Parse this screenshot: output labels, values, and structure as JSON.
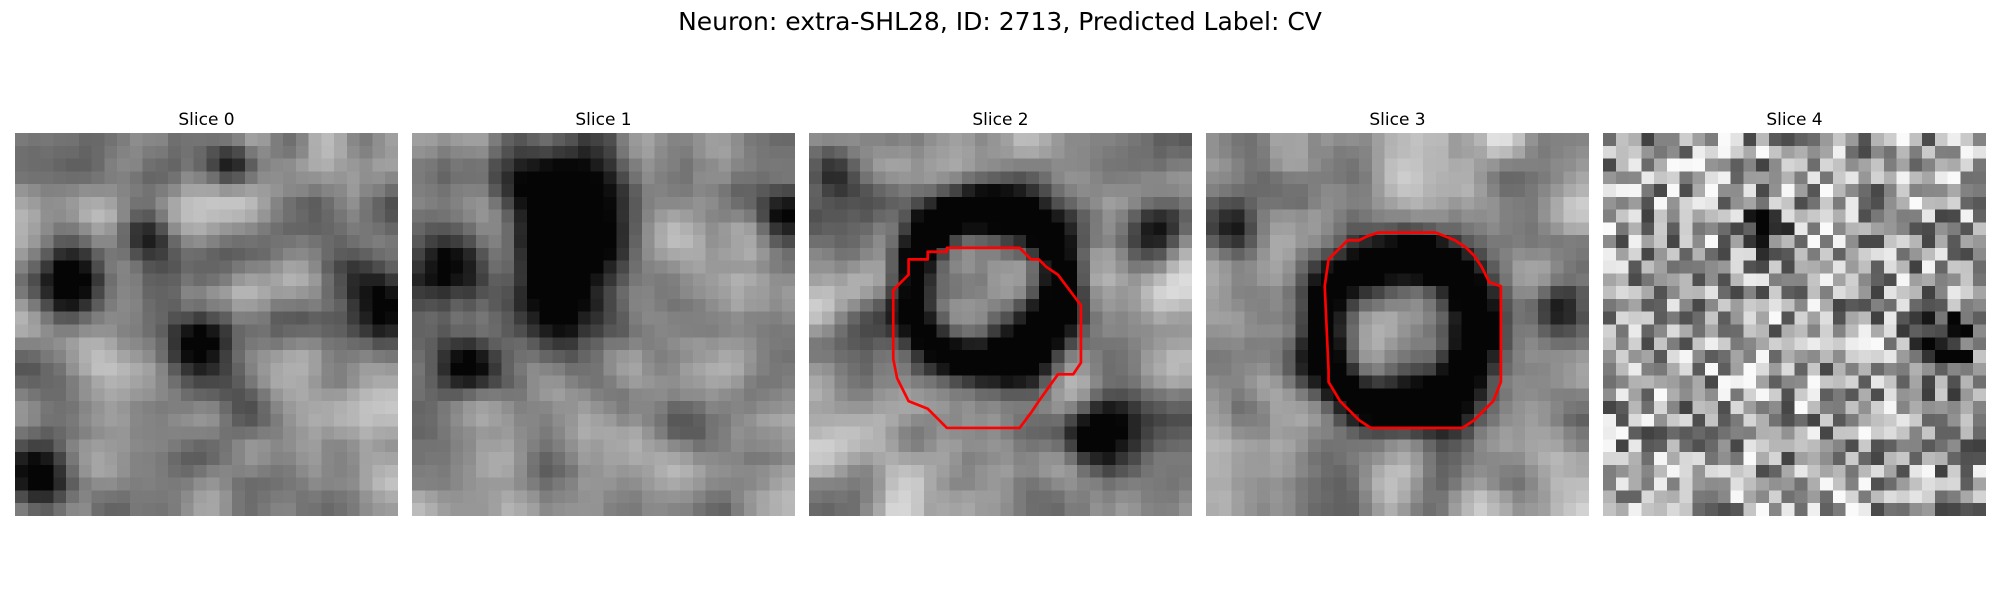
{
  "title": "Neuron: extra-SHL28, ID: 2713, Predicted Label: CV",
  "overlay_color": "#ff0000",
  "slices": [
    {
      "label": "Slice 0",
      "texture": "smooth",
      "dark_spots": [
        [
          0.47,
          0.55,
          0.07
        ],
        [
          0.93,
          0.45,
          0.08
        ],
        [
          0.15,
          0.38,
          0.06
        ],
        [
          0.57,
          0.08,
          0.05
        ],
        [
          0.05,
          0.9,
          0.06
        ],
        [
          0.35,
          0.28,
          0.05
        ]
      ],
      "ring": null,
      "contour": null
    },
    {
      "label": "Slice 1",
      "texture": "smooth",
      "dark_spots": [
        [
          0.4,
          0.15,
          0.12
        ],
        [
          0.4,
          0.3,
          0.09
        ],
        [
          0.38,
          0.47,
          0.1
        ],
        [
          0.08,
          0.35,
          0.07
        ],
        [
          0.97,
          0.2,
          0.06
        ],
        [
          0.15,
          0.6,
          0.06
        ]
      ],
      "ring": null,
      "contour": null
    },
    {
      "label": "Slice 2",
      "texture": "smooth",
      "dark_spots": [
        [
          0.92,
          0.25,
          0.06
        ],
        [
          0.75,
          0.78,
          0.07
        ],
        [
          0.05,
          0.1,
          0.05
        ]
      ],
      "ring": [
        0.46,
        0.4,
        0.2,
        0.05
      ],
      "contour": [
        [
          0.23,
          0.4
        ],
        [
          0.26,
          0.37
        ],
        [
          0.26,
          0.33
        ],
        [
          0.31,
          0.33
        ],
        [
          0.31,
          0.31
        ],
        [
          0.36,
          0.31
        ],
        [
          0.36,
          0.3
        ],
        [
          0.55,
          0.3
        ],
        [
          0.58,
          0.33
        ],
        [
          0.6,
          0.33
        ],
        [
          0.62,
          0.35
        ],
        [
          0.65,
          0.37
        ],
        [
          0.71,
          0.45
        ],
        [
          0.71,
          0.6
        ],
        [
          0.69,
          0.63
        ],
        [
          0.65,
          0.63
        ],
        [
          0.6,
          0.7
        ],
        [
          0.58,
          0.73
        ],
        [
          0.55,
          0.77
        ],
        [
          0.36,
          0.77
        ],
        [
          0.31,
          0.72
        ],
        [
          0.26,
          0.7
        ],
        [
          0.23,
          0.64
        ],
        [
          0.22,
          0.59
        ],
        [
          0.22,
          0.41
        ]
      ]
    },
    {
      "label": "Slice 3",
      "texture": "smooth",
      "dark_spots": [
        [
          0.05,
          0.25,
          0.06
        ],
        [
          0.92,
          0.45,
          0.05
        ]
      ],
      "ring": [
        0.5,
        0.52,
        0.2,
        0.05
      ],
      "contour": [
        [
          0.32,
          0.33
        ],
        [
          0.35,
          0.3
        ],
        [
          0.37,
          0.28
        ],
        [
          0.4,
          0.28
        ],
        [
          0.42,
          0.27
        ],
        [
          0.45,
          0.26
        ],
        [
          0.6,
          0.26
        ],
        [
          0.65,
          0.28
        ],
        [
          0.68,
          0.3
        ],
        [
          0.7,
          0.32
        ],
        [
          0.72,
          0.35
        ],
        [
          0.74,
          0.39
        ],
        [
          0.77,
          0.4
        ],
        [
          0.77,
          0.65
        ],
        [
          0.75,
          0.7
        ],
        [
          0.73,
          0.72
        ],
        [
          0.7,
          0.75
        ],
        [
          0.67,
          0.77
        ],
        [
          0.63,
          0.77
        ],
        [
          0.6,
          0.77
        ],
        [
          0.47,
          0.77
        ],
        [
          0.43,
          0.77
        ],
        [
          0.4,
          0.75
        ],
        [
          0.37,
          0.72
        ],
        [
          0.35,
          0.7
        ],
        [
          0.32,
          0.65
        ],
        [
          0.32,
          0.62
        ],
        [
          0.31,
          0.4
        ]
      ]
    },
    {
      "label": "Slice 4",
      "texture": "noisy",
      "dark_spots": [
        [
          0.42,
          0.25,
          0.04
        ],
        [
          0.9,
          0.55,
          0.06
        ]
      ],
      "ring": null,
      "contour": null
    }
  ]
}
